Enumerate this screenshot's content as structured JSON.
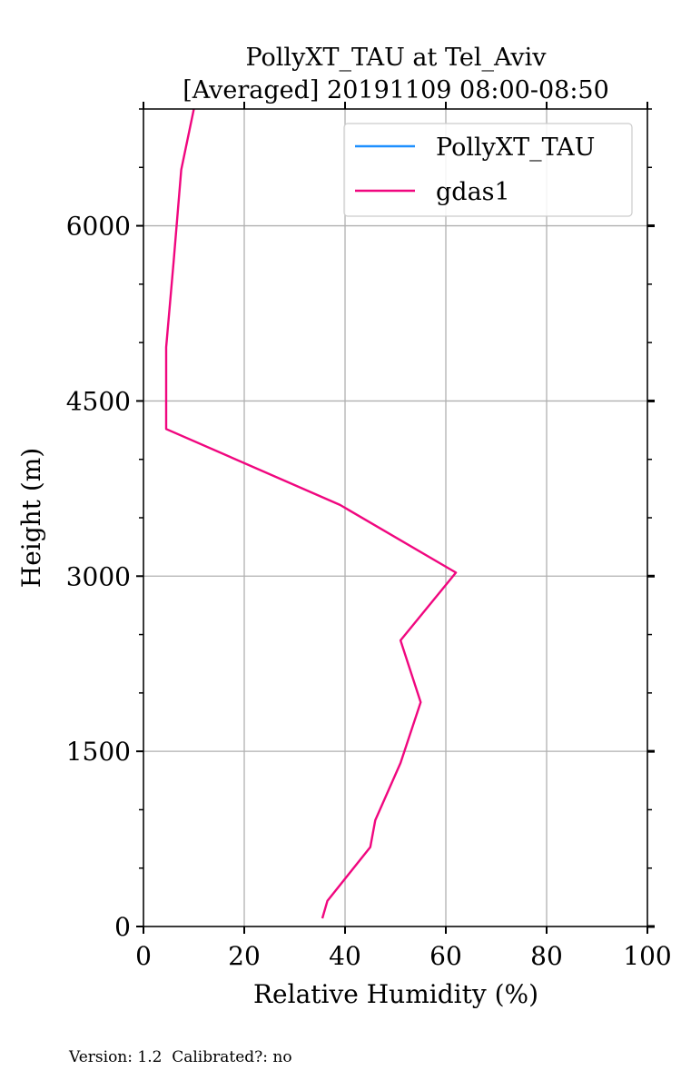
{
  "chart_data": {
    "type": "line",
    "title": "PollyXT_TAU at Tel_Aviv",
    "subtitle": "[Averaged] 20191109 08:00-08:50",
    "xlabel": "Relative Humidity (%)",
    "ylabel": "Height (m)",
    "xlim": [
      0,
      100
    ],
    "ylim": [
      0,
      7000
    ],
    "xticks": [
      0,
      20,
      40,
      60,
      80,
      100
    ],
    "yticks": [
      0,
      1500,
      3000,
      4500,
      6000
    ],
    "grid": true,
    "legend_position": "top-right",
    "series": [
      {
        "name": "PollyXT_TAU",
        "color": "#1e90ff",
        "x": [],
        "y": []
      },
      {
        "name": "gdas1",
        "color": "#f0077f",
        "x": [
          35.5,
          36.5,
          45,
          46,
          51,
          55,
          51,
          62,
          39,
          4.5,
          4.5,
          6,
          7.5,
          10
        ],
        "y": [
          70,
          220,
          680,
          910,
          1400,
          1920,
          2450,
          3030,
          3610,
          4260,
          4960,
          5700,
          6480,
          7000
        ]
      }
    ]
  },
  "footer": {
    "version_text": "Version: 1.2  Calibrated?: no"
  }
}
